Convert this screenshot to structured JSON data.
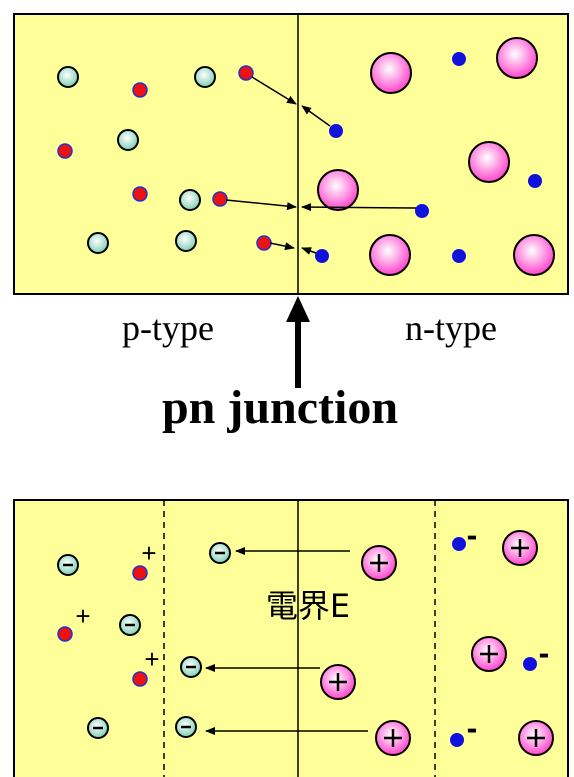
{
  "top_panel": {
    "left_label": "p-type",
    "right_label": "n-type",
    "title": "pn junction"
  },
  "bottom_panel": {
    "field_label": "電界E",
    "minus_sign": "-",
    "plus_sign": "+"
  },
  "colors": {
    "panel_fill": "#ffff99",
    "acceptor_ion": "#b7e8d6",
    "donor_ion": "#ff88dd",
    "hole": "#ee1111",
    "electron": "#1111dd",
    "outline": "#000000"
  }
}
